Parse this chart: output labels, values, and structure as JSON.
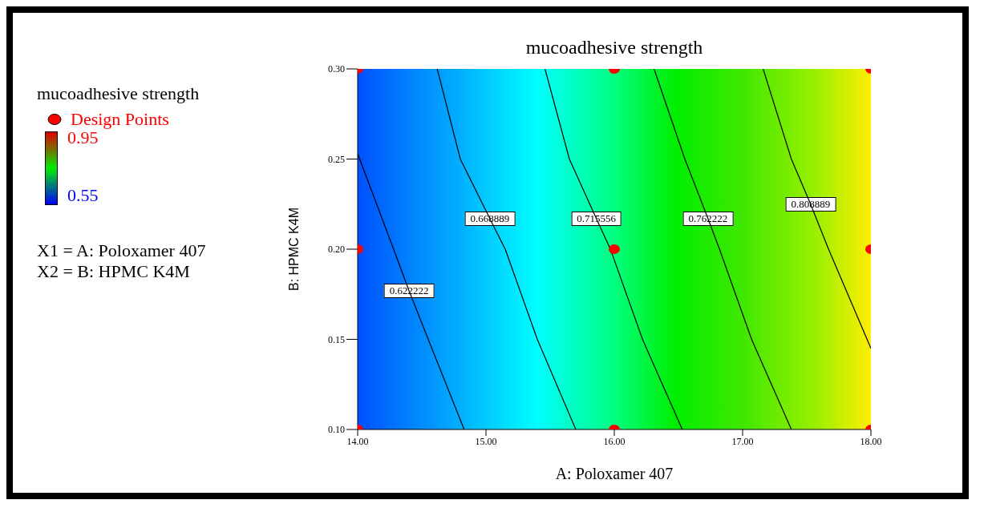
{
  "chart_data": {
    "type": "line",
    "title": "mucoadhesive strength",
    "xlabel": "A: Poloxamer 407",
    "ylabel": "B: HPMC K4M",
    "clabel": "mucoadhesive strength",
    "clim": [
      0.55,
      0.95
    ],
    "cticks": [
      0.55,
      0.95
    ],
    "xlim": [
      14,
      18
    ],
    "xticks": [
      {
        "value": 14,
        "label": "14.00"
      },
      {
        "value": 15,
        "label": "15.00"
      },
      {
        "value": 16,
        "label": "16.00"
      },
      {
        "value": 17,
        "label": "17.00"
      },
      {
        "value": 18,
        "label": "18.00"
      }
    ],
    "ylim": [
      0.1,
      0.3
    ],
    "yticks": [
      {
        "value": 0.1,
        "label": "0.10"
      },
      {
        "value": 0.15,
        "label": "0.15"
      },
      {
        "value": 0.2,
        "label": "0.20"
      },
      {
        "value": 0.25,
        "label": "0.25"
      },
      {
        "value": 0.3,
        "label": "0.30"
      }
    ],
    "grid": false,
    "legend": "left",
    "line_style": "solid",
    "series": [
      {
        "color": "#000000",
        "x": [
          14,
          14.28,
          14.4,
          14.55,
          14.83
        ],
        "values": [
          0.253,
          0.2,
          0.177,
          0.15,
          0.1
        ]
      },
      {
        "color": "#000000",
        "x": [
          14.62,
          14.8,
          15.03,
          15.15,
          15.4,
          15.7
        ],
        "values": [
          0.3,
          0.25,
          0.217,
          0.2,
          0.15,
          0.1
        ]
      },
      {
        "color": "#000000",
        "x": [
          15.46,
          15.65,
          15.86,
          15.97,
          16.22,
          16.53
        ],
        "values": [
          0.3,
          0.25,
          0.217,
          0.2,
          0.15,
          0.1
        ]
      },
      {
        "color": "#000000",
        "x": [
          16.31,
          16.55,
          16.73,
          16.82,
          17.07,
          17.38
        ],
        "values": [
          0.3,
          0.25,
          0.217,
          0.2,
          0.15,
          0.1
        ]
      },
      {
        "color": "#000000",
        "x": [
          17.16,
          17.38,
          17.53,
          17.67,
          17.97,
          18
        ],
        "values": [
          0.3,
          0.25,
          0.225,
          0.2,
          0.15,
          0.145
        ]
      },
      {
        "type": "scatter",
        "name": "Design Points",
        "color": "#ff0000",
        "marker": "circle",
        "x": [
          14,
          16,
          18,
          14,
          16,
          18,
          14,
          16,
          18
        ],
        "values": [
          0.3,
          0.3,
          0.3,
          0.2,
          0.2,
          0.2,
          0.1,
          0.1,
          0.1
        ]
      }
    ],
    "annotations": [
      {
        "text": "0.622222",
        "x": 14.4,
        "y": 0.177
      },
      {
        "text": "0.668889",
        "x": 15.03,
        "y": 0.217
      },
      {
        "text": "0.715556",
        "x": 15.86,
        "y": 0.217
      },
      {
        "text": "0.762222",
        "x": 16.73,
        "y": 0.217
      },
      {
        "text": "0.808889",
        "x": 17.53,
        "y": 0.225
      },
      "X1 = A: Poloxamer 407",
      "X2 = B: HPMC K4M"
    ]
  }
}
